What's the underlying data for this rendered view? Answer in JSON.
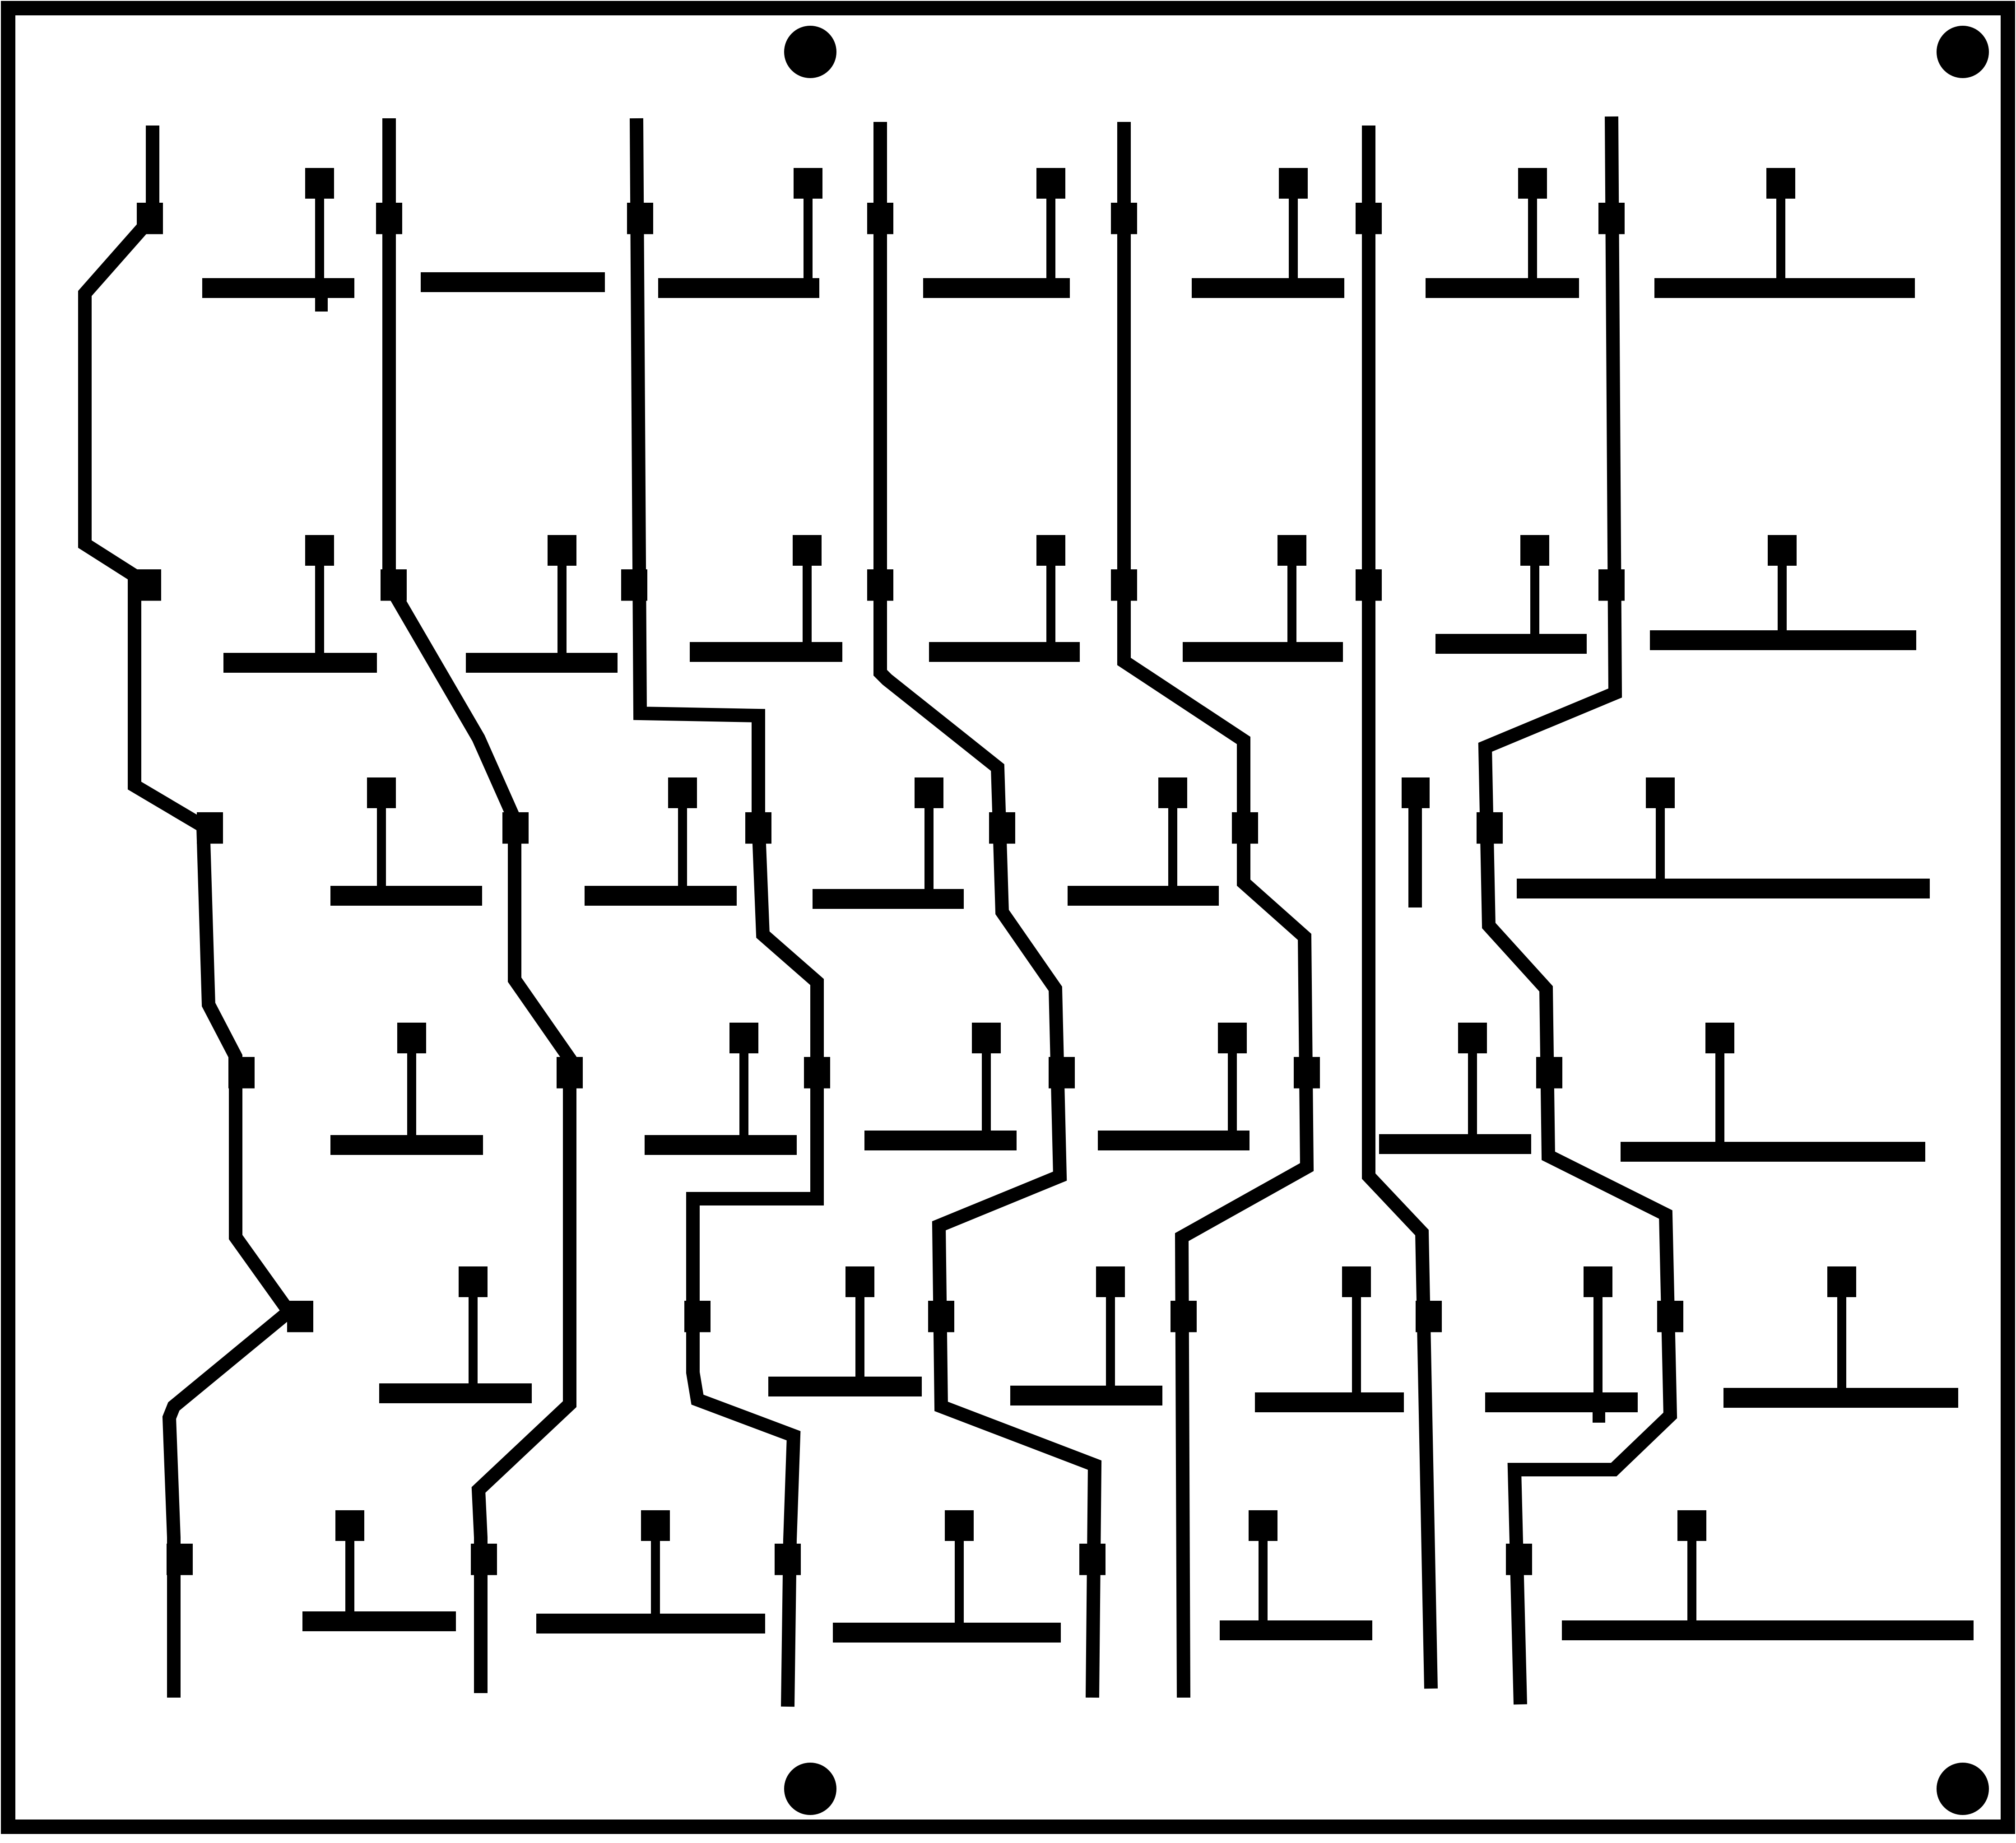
{
  "board": {
    "background_color": "#ffffff",
    "trace_color": "#000000",
    "pad_color": "#000000",
    "mount_hole_color": "#000000",
    "mount_hole_count": 4,
    "switch_grid": {
      "rows": 7,
      "columns": 7
    }
  }
}
